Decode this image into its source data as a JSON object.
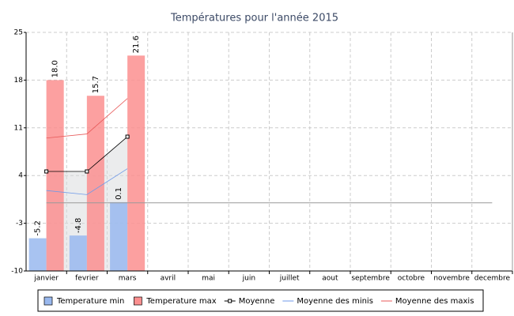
{
  "chart_data": {
    "type": "bar",
    "title": "Températures pour l'année 2015",
    "categories": [
      "janvier",
      "fevrier",
      "mars",
      "avril",
      "mai",
      "juin",
      "juillet",
      "aout",
      "septembre",
      "octobre",
      "novembre",
      "decembre"
    ],
    "ylim": [
      -10,
      25
    ],
    "yticks": [
      -10,
      -3,
      4,
      11,
      18,
      25
    ],
    "grid": true,
    "series": [
      {
        "name": "Temperature min",
        "type": "bar",
        "color": "#99b8ee",
        "values": [
          -5.2,
          -4.8,
          0.1,
          null,
          null,
          null,
          null,
          null,
          null,
          null,
          null,
          null
        ],
        "value_labels": [
          "-5.2",
          "-4.8",
          "0.1",
          null,
          null,
          null,
          null,
          null,
          null,
          null,
          null,
          null
        ]
      },
      {
        "name": "Temperature max",
        "type": "bar",
        "color": "#fc8f8f",
        "values": [
          18,
          15.7,
          21.6,
          null,
          null,
          null,
          null,
          null,
          null,
          null,
          null,
          null
        ],
        "value_labels": [
          "18.0",
          "15.7",
          "21.6",
          null,
          null,
          null,
          null,
          null,
          null,
          null,
          null,
          null
        ]
      },
      {
        "name": "Moyenne",
        "type": "line",
        "color": "#000000",
        "marker": "square",
        "area": true,
        "values": [
          4.6,
          4.6,
          9.7,
          null,
          null,
          null,
          null,
          null,
          null,
          null,
          null,
          null
        ]
      },
      {
        "name": "Moyenne des minis",
        "type": "line",
        "color": "#6f9ae8",
        "values": [
          1.8,
          1.2,
          5.0,
          null,
          null,
          null,
          null,
          null,
          null,
          null,
          null,
          null
        ]
      },
      {
        "name": "Moyenne des maxis",
        "type": "line",
        "color": "#e85a5a",
        "values": [
          9.5,
          10.1,
          15.3,
          null,
          null,
          null,
          null,
          null,
          null,
          null,
          null,
          null
        ]
      }
    ]
  }
}
